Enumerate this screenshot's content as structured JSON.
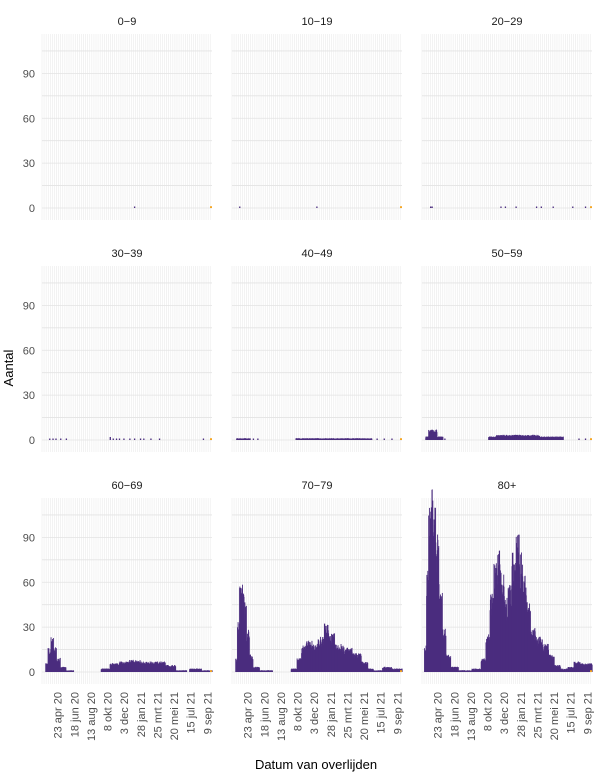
{
  "chart_data": {
    "type": "bar",
    "layout": "facet-grid 3x3",
    "xlabel": "Datum van overlijden",
    "ylabel": "Aantal",
    "ylim": [
      0,
      115
    ],
    "yticks": [
      0,
      30,
      60,
      90
    ],
    "x_range": [
      "2020-03-01",
      "2021-09-25"
    ],
    "xticks": [
      "23 apr 20",
      "18 jun 20",
      "13 aug 20",
      "8 okt 20",
      "3 dec 20",
      "28 jan 21",
      "25 mrt 21",
      "20 mei 21",
      "15 jul 21",
      "9 sep 21"
    ],
    "xtick_dates": [
      "2020-04-23",
      "2020-06-18",
      "2020-08-13",
      "2020-10-08",
      "2020-12-03",
      "2021-01-28",
      "2021-03-25",
      "2021-05-20",
      "2021-07-15",
      "2021-09-09"
    ],
    "bar_color": "#4b2d7f",
    "recent_bar_color": "#f5a623",
    "grid": true,
    "facets": [
      {
        "label": "0−9",
        "series": {
          "points": [
            [
              "2021-01-05",
              1
            ]
          ],
          "segments": []
        }
      },
      {
        "label": "10−19",
        "series": {
          "points": [
            [
              "2020-03-25",
              1
            ],
            [
              "2020-12-10",
              1
            ]
          ],
          "segments": []
        }
      },
      {
        "label": "20−29",
        "series": {
          "points": [
            [
              "2020-03-28",
              1
            ],
            [
              "2020-04-02",
              1
            ],
            [
              "2020-11-20",
              1
            ],
            [
              "2020-12-05",
              1
            ],
            [
              "2021-01-10",
              1
            ],
            [
              "2021-03-20",
              1
            ],
            [
              "2021-04-05",
              1
            ],
            [
              "2021-05-15",
              1
            ],
            [
              "2021-07-20",
              1
            ],
            [
              "2021-09-01",
              1
            ]
          ],
          "segments": []
        }
      },
      {
        "label": "30−39",
        "series": {
          "points": [
            [
              "2020-03-25",
              1
            ],
            [
              "2020-04-05",
              1
            ],
            [
              "2020-04-15",
              1
            ],
            [
              "2020-05-01",
              1
            ],
            [
              "2020-05-20",
              1
            ],
            [
              "2020-10-15",
              2
            ],
            [
              "2020-10-25",
              1
            ],
            [
              "2020-11-05",
              1
            ],
            [
              "2020-11-15",
              1
            ],
            [
              "2020-11-30",
              1
            ],
            [
              "2020-12-20",
              1
            ],
            [
              "2021-01-05",
              1
            ],
            [
              "2021-01-25",
              1
            ],
            [
              "2021-02-05",
              1
            ],
            [
              "2021-03-01",
              1
            ],
            [
              "2021-03-30",
              1
            ],
            [
              "2021-08-25",
              1
            ]
          ],
          "segments": []
        }
      },
      {
        "label": "40−49",
        "series": {
          "points": [
            [
              "2020-05-10",
              1
            ],
            [
              "2020-05-25",
              1
            ],
            [
              "2021-07-01",
              1
            ],
            [
              "2021-07-25",
              1
            ],
            [
              "2021-08-20",
              1
            ]
          ],
          "segments": [
            [
              "2020-03-15",
              "2020-05-01",
              1
            ],
            [
              "2020-10-01",
              "2021-06-15",
              1
            ]
          ]
        }
      },
      {
        "label": "50−59",
        "series": {
          "points": [
            [
              "2020-05-15",
              1
            ],
            [
              "2021-08-10",
              1
            ],
            [
              "2021-09-01",
              1
            ]
          ],
          "segments": [
            [
              "2020-03-12",
              "2020-03-22",
              2
            ],
            [
              "2020-03-22",
              "2020-04-20",
              6
            ],
            [
              "2020-04-20",
              "2020-05-10",
              2
            ],
            [
              "2020-10-10",
              "2020-11-05",
              2
            ],
            [
              "2020-11-05",
              "2021-04-01",
              3
            ],
            [
              "2021-04-01",
              "2021-06-20",
              2
            ]
          ]
        }
      },
      {
        "label": "60−69",
        "series": {
          "points": [],
          "segments": [
            [
              "2020-03-12",
              "2020-03-20",
              5
            ],
            [
              "2020-03-20",
              "2020-03-30",
              14
            ],
            [
              "2020-03-30",
              "2020-04-08",
              20
            ],
            [
              "2020-04-08",
              "2020-04-18",
              14
            ],
            [
              "2020-04-18",
              "2020-05-01",
              8
            ],
            [
              "2020-05-01",
              "2020-05-20",
              3
            ],
            [
              "2020-05-20",
              "2020-06-15",
              1
            ],
            [
              "2020-09-15",
              "2020-10-15",
              2
            ],
            [
              "2020-10-15",
              "2020-11-15",
              5
            ],
            [
              "2020-11-15",
              "2020-12-20",
              6
            ],
            [
              "2020-12-20",
              "2021-01-25",
              7
            ],
            [
              "2021-01-25",
              "2021-03-01",
              6
            ],
            [
              "2021-03-01",
              "2021-04-20",
              6
            ],
            [
              "2021-04-20",
              "2021-05-25",
              4
            ],
            [
              "2021-05-25",
              "2021-07-01",
              1
            ],
            [
              "2021-07-10",
              "2021-08-20",
              2
            ],
            [
              "2021-08-20",
              "2021-09-25",
              1
            ]
          ]
        }
      },
      {
        "label": "70−79",
        "series": {
          "points": [],
          "segments": [
            [
              "2020-03-12",
              "2020-03-18",
              8
            ],
            [
              "2020-03-18",
              "2020-03-25",
              30
            ],
            [
              "2020-03-25",
              "2020-04-02",
              50
            ],
            [
              "2020-04-02",
              "2020-04-10",
              55
            ],
            [
              "2020-04-10",
              "2020-04-18",
              40
            ],
            [
              "2020-04-18",
              "2020-04-28",
              24
            ],
            [
              "2020-04-28",
              "2020-05-10",
              10
            ],
            [
              "2020-05-10",
              "2020-06-01",
              3
            ],
            [
              "2020-06-01",
              "2020-07-15",
              1
            ],
            [
              "2020-09-15",
              "2020-10-05",
              2
            ],
            [
              "2020-10-05",
              "2020-10-20",
              8
            ],
            [
              "2020-10-20",
              "2020-11-05",
              15
            ],
            [
              "2020-11-05",
              "2020-11-25",
              18
            ],
            [
              "2020-11-25",
              "2020-12-15",
              16
            ],
            [
              "2020-12-15",
              "2021-01-05",
              20
            ],
            [
              "2021-01-05",
              "2021-01-20",
              28
            ],
            [
              "2021-01-20",
              "2021-02-10",
              22
            ],
            [
              "2021-02-10",
              "2021-03-10",
              16
            ],
            [
              "2021-03-10",
              "2021-04-10",
              14
            ],
            [
              "2021-04-10",
              "2021-05-10",
              11
            ],
            [
              "2021-05-10",
              "2021-06-01",
              6
            ],
            [
              "2021-06-01",
              "2021-06-20",
              2
            ],
            [
              "2021-06-20",
              "2021-07-20",
              1
            ],
            [
              "2021-07-20",
              "2021-08-20",
              3
            ],
            [
              "2021-08-20",
              "2021-09-25",
              2
            ]
          ]
        }
      },
      {
        "label": "80+",
        "series": {
          "points": [],
          "segments": [
            [
              "2020-03-08",
              "2020-03-15",
              15
            ],
            [
              "2020-03-15",
              "2020-03-22",
              60
            ],
            [
              "2020-03-22",
              "2020-03-30",
              95
            ],
            [
              "2020-03-30",
              "2020-04-08",
              108
            ],
            [
              "2020-04-08",
              "2020-04-16",
              100
            ],
            [
              "2020-04-16",
              "2020-04-26",
              80
            ],
            [
              "2020-04-26",
              "2020-05-08",
              50
            ],
            [
              "2020-05-08",
              "2020-05-20",
              25
            ],
            [
              "2020-05-20",
              "2020-06-05",
              10
            ],
            [
              "2020-06-05",
              "2020-07-01",
              3
            ],
            [
              "2020-07-01",
              "2020-08-15",
              1
            ],
            [
              "2020-08-15",
              "2020-09-15",
              2
            ],
            [
              "2020-09-15",
              "2020-10-01",
              8
            ],
            [
              "2020-10-01",
              "2020-10-15",
              22
            ],
            [
              "2020-10-15",
              "2020-10-28",
              45
            ],
            [
              "2020-10-28",
              "2020-11-10",
              62
            ],
            [
              "2020-11-10",
              "2020-11-22",
              70
            ],
            [
              "2020-11-22",
              "2020-12-03",
              58
            ],
            [
              "2020-12-03",
              "2020-12-15",
              42
            ],
            [
              "2020-12-15",
              "2020-12-28",
              52
            ],
            [
              "2020-12-28",
              "2021-01-10",
              70
            ],
            [
              "2021-01-10",
              "2021-01-22",
              78
            ],
            [
              "2021-01-22",
              "2021-02-03",
              68
            ],
            [
              "2021-02-03",
              "2021-02-15",
              55
            ],
            [
              "2021-02-15",
              "2021-03-01",
              40
            ],
            [
              "2021-03-01",
              "2021-03-20",
              25
            ],
            [
              "2021-03-20",
              "2021-04-10",
              20
            ],
            [
              "2021-04-10",
              "2021-05-01",
              16
            ],
            [
              "2021-05-01",
              "2021-05-20",
              10
            ],
            [
              "2021-05-20",
              "2021-06-10",
              4
            ],
            [
              "2021-06-10",
              "2021-07-05",
              2
            ],
            [
              "2021-07-05",
              "2021-07-25",
              3
            ],
            [
              "2021-07-25",
              "2021-08-15",
              6
            ],
            [
              "2021-08-15",
              "2021-09-25",
              5
            ]
          ]
        }
      }
    ]
  }
}
